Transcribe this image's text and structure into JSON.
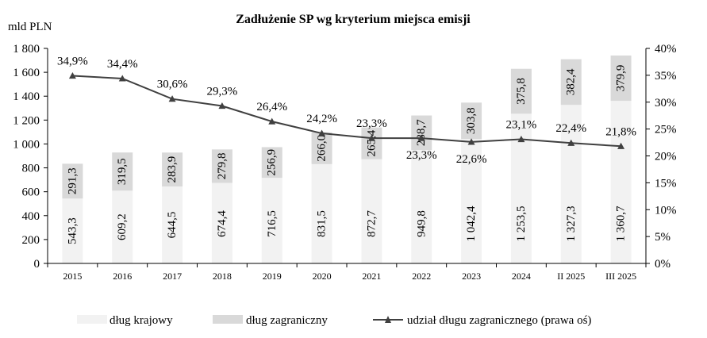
{
  "chart_data": {
    "type": "bar",
    "title": "Zadłużenie SP wg kryterium miejsca emisji",
    "ylabel": "mld PLN",
    "categories": [
      "2015",
      "2016",
      "2017",
      "2018",
      "2019",
      "2020",
      "2021",
      "2022",
      "2023",
      "2024",
      "II 2025",
      "III 2025"
    ],
    "ylim": [
      0,
      1800
    ],
    "y_ticks": [
      "0",
      "200",
      "400",
      "600",
      "800",
      "1 000",
      "1 200",
      "1 400",
      "1 600",
      "1 800"
    ],
    "y2lim": [
      0,
      40
    ],
    "y2_ticks": [
      "0%",
      "5%",
      "10%",
      "15%",
      "20%",
      "25%",
      "30%",
      "35%",
      "40%"
    ],
    "stacked": true,
    "series": [
      {
        "name": "dług krajowy",
        "color": "#f2f2f2",
        "values": [
          543.3,
          609.2,
          644.5,
          674.4,
          716.5,
          831.5,
          872.7,
          949.8,
          1042.4,
          1253.5,
          1327.3,
          1360.7
        ],
        "labels": [
          "543,3",
          "609,2",
          "644,5",
          "674,4",
          "716,5",
          "831,5",
          "872,7",
          "949,8",
          "1 042,4",
          "1 253,5",
          "1 327,3",
          "1 360,7"
        ]
      },
      {
        "name": "dług zagraniczny",
        "color": "#d9d9d9",
        "values": [
          291.3,
          319.5,
          283.9,
          279.8,
          256.9,
          266.0,
          265.4,
          288.7,
          303.8,
          375.8,
          382.4,
          379.9
        ],
        "labels": [
          "291,3",
          "319,5",
          "283,9",
          "279,8",
          "256,9",
          "266,0",
          "265,4",
          "288,7",
          "303,8",
          "375,8",
          "382,4",
          "379,9"
        ]
      }
    ],
    "line_series": {
      "name": "udział długu zagranicznego (prawa oś)",
      "color": "#404040",
      "axis": "right",
      "values": [
        34.9,
        34.4,
        30.6,
        29.3,
        26.4,
        24.2,
        23.3,
        23.3,
        22.6,
        23.1,
        22.4,
        21.8
      ],
      "labels": [
        "34,9%",
        "34,4%",
        "30,6%",
        "29,3%",
        "26,4%",
        "24,2%",
        "23,3%",
        "23,3%",
        "22,6%",
        "23,1%",
        "22,4%",
        "21,8%"
      ]
    },
    "legend_position": "bottom",
    "grid": false
  }
}
